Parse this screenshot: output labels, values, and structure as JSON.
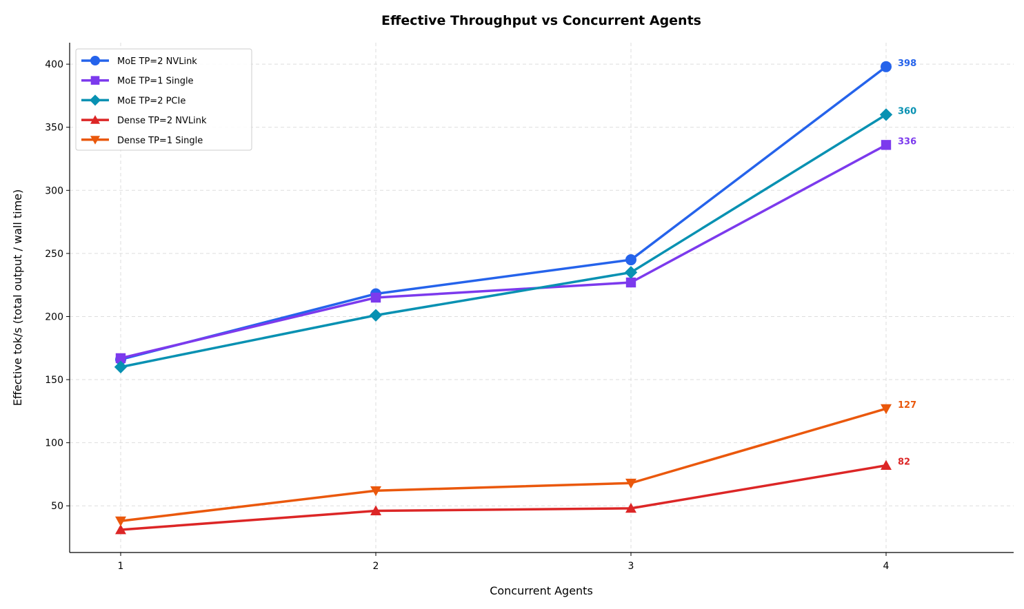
{
  "chart_data": {
    "type": "line",
    "title": "Effective Throughput vs Concurrent Agents",
    "xlabel": "Concurrent Agents",
    "ylabel": "Effective tok/s (total output / wall time)",
    "x": [
      1,
      2,
      3,
      4
    ],
    "xticks": [
      "1",
      "2",
      "3",
      "4"
    ],
    "yticks": [
      50,
      100,
      150,
      200,
      250,
      300,
      350,
      400
    ],
    "xlim": [
      0.8,
      4.5
    ],
    "ylim": [
      13,
      417
    ],
    "grid": true,
    "legend": "top-left",
    "series": [
      {
        "name": "MoE TP=2 NVLink",
        "values": [
          166,
          218,
          245,
          398
        ],
        "color": "#2563eb",
        "marker": "circle",
        "end_label": "398"
      },
      {
        "name": "MoE TP=1 Single",
        "values": [
          167,
          215,
          227,
          336
        ],
        "color": "#7c3aed",
        "marker": "square",
        "end_label": "336"
      },
      {
        "name": "MoE TP=2 PCIe",
        "values": [
          160,
          201,
          235,
          360
        ],
        "color": "#0891b2",
        "marker": "diamond",
        "end_label": "360"
      },
      {
        "name": "Dense TP=2 NVLink",
        "values": [
          31,
          46,
          48,
          82
        ],
        "color": "#dc2626",
        "marker": "triangle-up",
        "end_label": "82"
      },
      {
        "name": "Dense TP=1 Single",
        "values": [
          38,
          62,
          68,
          127
        ],
        "color": "#ea580c",
        "marker": "triangle-down",
        "end_label": "127"
      }
    ]
  }
}
